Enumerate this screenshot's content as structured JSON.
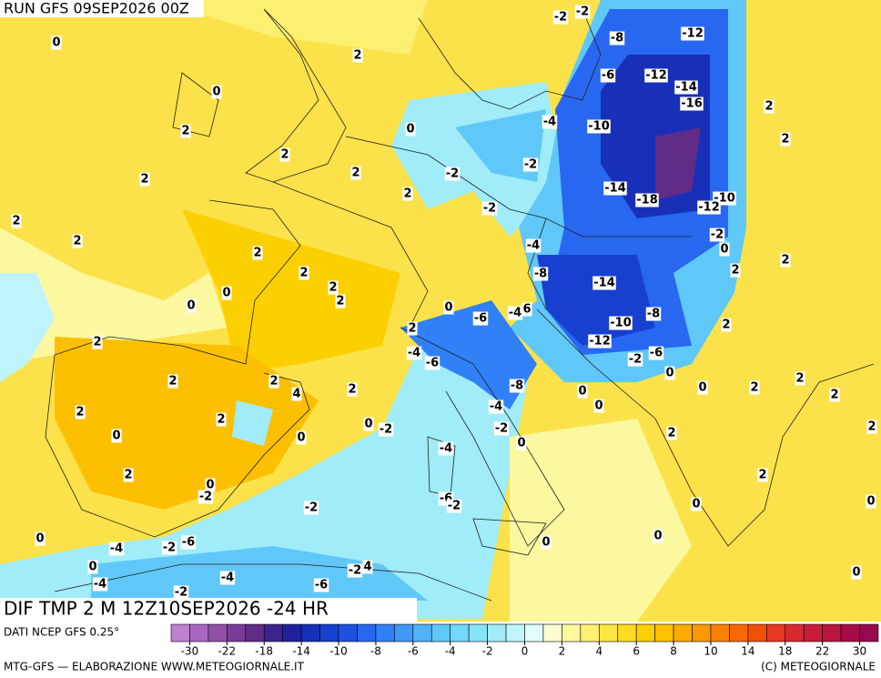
{
  "header": {
    "run": "RUN GFS 09SEP2026 00Z",
    "field": "DIF TMP 2 M 12Z10SEP2026 -24 HR"
  },
  "footer": {
    "source": "DATI NCEP GFS 0.25°",
    "credit": "MTG-GFS — ELABORAZIONE WWW.METEOGIORNALE.IT",
    "copyright": "(C) METEOGIORNALE"
  },
  "colorbar": {
    "ticks": [
      -30,
      -22,
      -18,
      -14,
      -10,
      -8,
      -6,
      -4,
      -2,
      0,
      2,
      4,
      6,
      8,
      10,
      14,
      18,
      22,
      30
    ],
    "colors": [
      "#c080d0",
      "#a868c0",
      "#9050a8",
      "#783c98",
      "#602c88",
      "#3c2490",
      "#2020a0",
      "#1830b8",
      "#1840d0",
      "#2050e0",
      "#2868f0",
      "#3080f8",
      "#4098f8",
      "#50b0f8",
      "#60c8f8",
      "#70d8f8",
      "#88e4f8",
      "#a0ecf8",
      "#c0f4fc",
      "#e0fcfc",
      "#fcfcd0",
      "#fcf8a0",
      "#fcf070",
      "#fce840",
      "#fcdc20",
      "#fcd000",
      "#fcc000",
      "#fcac00",
      "#fc9800",
      "#fc8000",
      "#f86800",
      "#f05000",
      "#e83820",
      "#d82830",
      "#c81c38",
      "#b81440",
      "#a80c48",
      "#980850"
    ]
  },
  "map_labels": [
    "0",
    "2",
    "0",
    "2",
    "2",
    "2",
    "2",
    "2",
    "2",
    "2",
    "0",
    "-2",
    "-2",
    "2",
    "2",
    "2",
    "2",
    "0",
    "0",
    "2",
    "2",
    "2",
    "4",
    "2",
    "2",
    "2",
    "0",
    "0",
    "2",
    "0",
    "-2",
    "0",
    "-2",
    "0",
    "-4",
    "-2",
    "-6",
    "0",
    "-4",
    "-4",
    "-2",
    "-2",
    "-6",
    "-2",
    "4",
    "-2",
    "-2",
    "-8",
    "-12",
    "-6",
    "-12",
    "-14",
    "-16",
    "-4",
    "-10",
    "2",
    "2",
    "-2",
    "-14",
    "-18",
    "-10",
    "-12",
    "-2",
    "0",
    "2",
    "2",
    "-4",
    "-8",
    "-14",
    "0",
    "-6",
    "-4",
    "6",
    "-8",
    "-10",
    "2",
    "2",
    "-12",
    "-4",
    "-6",
    "-2",
    "-6",
    "0",
    "-8",
    "-4",
    "0",
    "0",
    "0",
    "2",
    "2",
    "2",
    "2",
    "-2",
    "0",
    "2",
    "-4",
    "2",
    "-6",
    "-2",
    "0",
    "0",
    "0",
    "0",
    "0"
  ]
}
